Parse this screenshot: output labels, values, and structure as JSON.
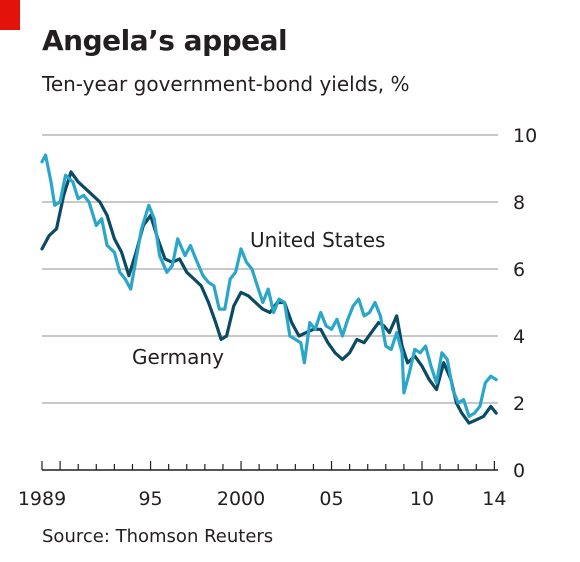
{
  "title": "Angela’s appeal",
  "subtitle": "Ten-year government-bond yields, %",
  "source": "Source: Thomson Reuters",
  "colors": {
    "accent": "#e3120b",
    "germany": "#0b4a63",
    "united_states": "#2ba6cb",
    "grid": "#c8c8c8"
  },
  "chart_data": {
    "type": "line",
    "title": "Angela’s appeal",
    "subtitle": "Ten-year government-bond yields, %",
    "xlim": [
      1989,
      2014.2
    ],
    "ylim": [
      0,
      10
    ],
    "yticks": [
      0,
      2,
      4,
      6,
      8,
      10
    ],
    "xtick_labels": [
      {
        "x": 1989,
        "label": "1989"
      },
      {
        "x": 1995,
        "label": "95"
      },
      {
        "x": 2000,
        "label": "2000"
      },
      {
        "x": 2005,
        "label": "05"
      },
      {
        "x": 2010,
        "label": "10"
      },
      {
        "x": 2014,
        "label": "14"
      }
    ],
    "y_axis_side": "right",
    "grid": true,
    "series": [
      {
        "name": "United States",
        "color": "#2ba6cb",
        "x": [
          1989.0,
          1989.2,
          1989.5,
          1989.7,
          1990.0,
          1990.3,
          1990.5,
          1990.7,
          1991.0,
          1991.3,
          1991.6,
          1992.0,
          1992.3,
          1992.6,
          1993.0,
          1993.3,
          1993.6,
          1993.9,
          1994.2,
          1994.5,
          1994.9,
          1995.2,
          1995.5,
          1995.9,
          1996.2,
          1996.5,
          1996.9,
          1997.2,
          1997.5,
          1997.9,
          1998.2,
          1998.5,
          1998.8,
          1999.1,
          1999.4,
          1999.7,
          2000.0,
          2000.3,
          2000.6,
          2000.9,
          2001.2,
          2001.5,
          2001.8,
          2002.1,
          2002.4,
          2002.7,
          2003.0,
          2003.3,
          2003.5,
          2003.8,
          2004.1,
          2004.4,
          2004.7,
          2005.0,
          2005.3,
          2005.6,
          2005.9,
          2006.2,
          2006.5,
          2006.8,
          2007.1,
          2007.4,
          2007.7,
          2008.0,
          2008.3,
          2008.6,
          2008.9,
          2009.0,
          2009.3,
          2009.6,
          2009.9,
          2010.2,
          2010.5,
          2010.8,
          2011.1,
          2011.4,
          2011.7,
          2012.0,
          2012.3,
          2012.6,
          2012.9,
          2013.2,
          2013.5,
          2013.8,
          2014.1
        ],
        "values": [
          9.2,
          9.4,
          8.6,
          7.9,
          8.0,
          8.8,
          8.7,
          8.6,
          8.1,
          8.2,
          8.0,
          7.3,
          7.5,
          6.7,
          6.5,
          5.9,
          5.7,
          5.4,
          6.3,
          7.2,
          7.9,
          7.5,
          6.4,
          5.9,
          6.1,
          6.9,
          6.4,
          6.7,
          6.3,
          5.8,
          5.6,
          5.5,
          4.8,
          4.8,
          5.7,
          5.9,
          6.6,
          6.2,
          6.0,
          5.5,
          5.0,
          5.4,
          4.7,
          5.1,
          5.0,
          4.0,
          3.9,
          3.8,
          3.2,
          4.4,
          4.2,
          4.7,
          4.3,
          4.2,
          4.5,
          4.0,
          4.5,
          4.9,
          5.1,
          4.6,
          4.7,
          5.0,
          4.6,
          3.7,
          3.6,
          4.1,
          3.5,
          2.3,
          2.9,
          3.6,
          3.5,
          3.7,
          3.1,
          2.6,
          3.5,
          3.3,
          2.4,
          2.0,
          2.1,
          1.6,
          1.7,
          1.9,
          2.6,
          2.8,
          2.7
        ]
      },
      {
        "name": "Germany",
        "color": "#0b4a63",
        "x": [
          1989.0,
          1989.4,
          1989.8,
          1990.2,
          1990.6,
          1991.0,
          1991.4,
          1991.8,
          1992.2,
          1992.6,
          1993.0,
          1993.4,
          1993.8,
          1994.2,
          1994.6,
          1995.0,
          1995.4,
          1995.8,
          1996.2,
          1996.6,
          1997.0,
          1997.4,
          1997.8,
          1998.2,
          1998.6,
          1998.9,
          1999.2,
          1999.6,
          2000.0,
          2000.4,
          2000.8,
          2001.2,
          2001.6,
          2002.0,
          2002.4,
          2002.8,
          2003.2,
          2003.6,
          2004.0,
          2004.4,
          2004.8,
          2005.2,
          2005.6,
          2006.0,
          2006.4,
          2006.8,
          2007.2,
          2007.6,
          2007.9,
          2008.2,
          2008.6,
          2008.9,
          2009.2,
          2009.6,
          2010.0,
          2010.4,
          2010.8,
          2011.2,
          2011.6,
          2011.9,
          2012.2,
          2012.6,
          2013.0,
          2013.4,
          2013.8,
          2014.1
        ],
        "values": [
          6.6,
          7.0,
          7.2,
          8.2,
          8.9,
          8.6,
          8.4,
          8.2,
          8.0,
          7.6,
          6.9,
          6.5,
          5.8,
          6.5,
          7.3,
          7.6,
          6.9,
          6.3,
          6.2,
          6.3,
          5.9,
          5.7,
          5.5,
          5.0,
          4.4,
          3.9,
          4.0,
          4.9,
          5.3,
          5.2,
          5.0,
          4.8,
          4.7,
          5.0,
          5.0,
          4.4,
          4.0,
          4.1,
          4.2,
          4.2,
          3.8,
          3.5,
          3.3,
          3.5,
          3.9,
          3.8,
          4.1,
          4.4,
          4.3,
          4.1,
          4.6,
          3.7,
          3.2,
          3.4,
          3.1,
          2.7,
          2.4,
          3.2,
          2.7,
          2.0,
          1.7,
          1.4,
          1.5,
          1.6,
          1.9,
          1.7
        ]
      }
    ]
  },
  "labels": {
    "united_states": "United States",
    "germany": "Germany"
  }
}
